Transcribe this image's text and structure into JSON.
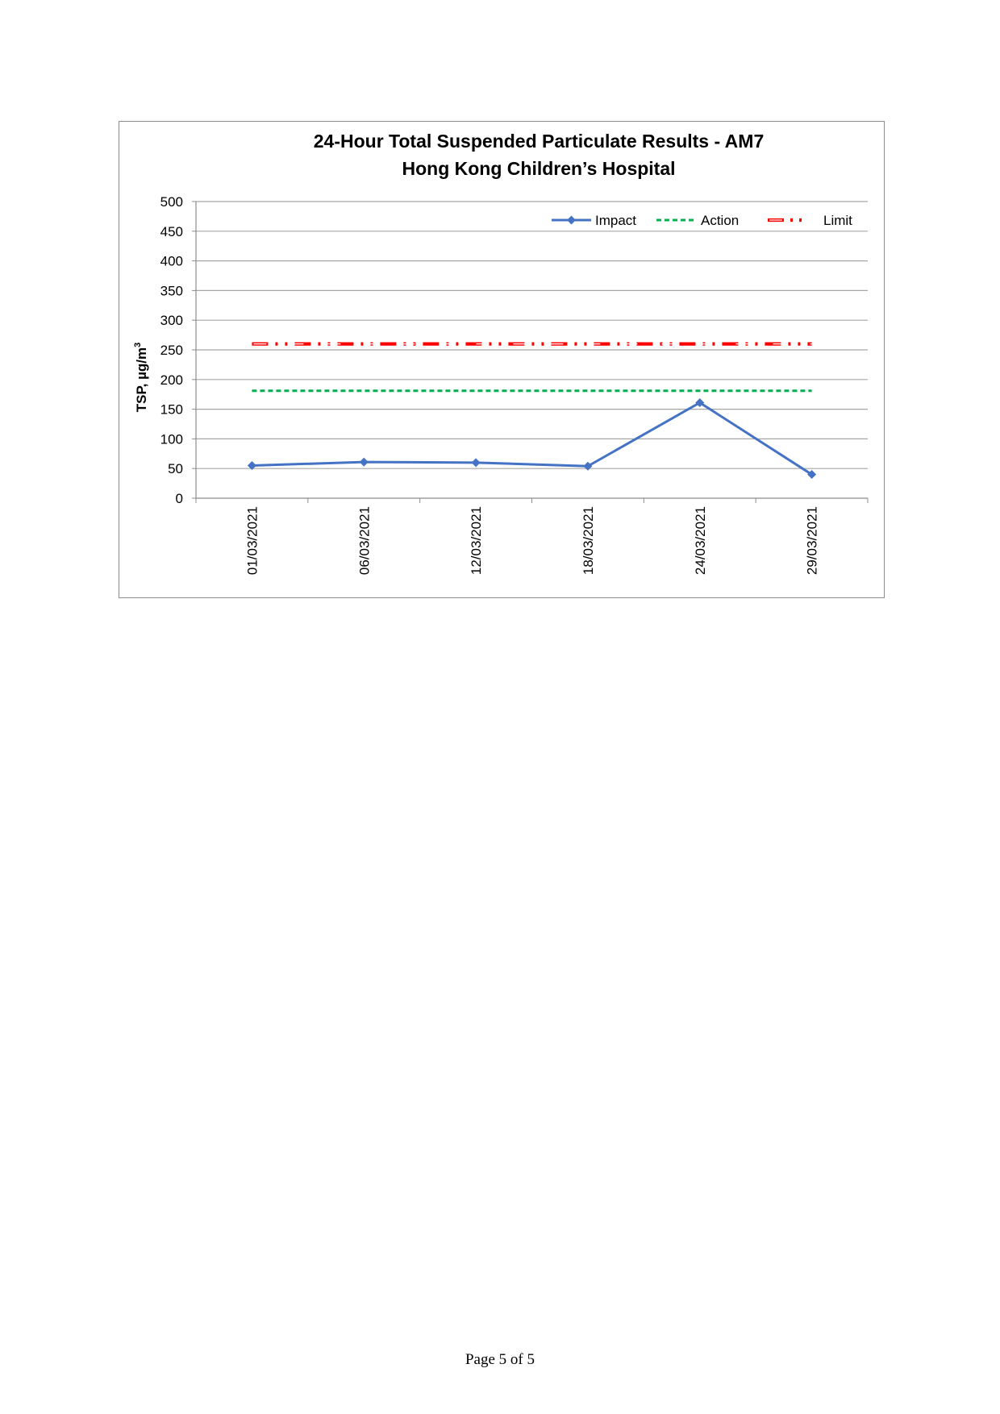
{
  "chart_data": {
    "type": "line",
    "title": "24-Hour Total Suspended Particulate Results - AM7",
    "subtitle": "Hong Kong Children’s Hospital",
    "ylabel": "TSP, µg/m",
    "ylabel_superscript": "3",
    "xlabel": "",
    "ylim": [
      0,
      500
    ],
    "yticks": [
      0,
      50,
      100,
      150,
      200,
      250,
      300,
      350,
      400,
      450,
      500
    ],
    "categories": [
      "01/03/2021",
      "06/03/2021",
      "12/03/2021",
      "18/03/2021",
      "24/03/2021",
      "29/03/2021"
    ],
    "grid": true,
    "legend_position": "top-right",
    "series": [
      {
        "name": "Impact",
        "values": [
          55,
          61,
          60,
          54,
          161,
          40
        ],
        "color": "#4472c4",
        "style": "solid-diamond"
      },
      {
        "name": "Action",
        "values": [
          181,
          181,
          181,
          181,
          181,
          181
        ],
        "color": "#00b050",
        "style": "dashed"
      },
      {
        "name": "Limit",
        "values": [
          260,
          260,
          260,
          260,
          260,
          260
        ],
        "color": "#ff0000",
        "style": "dash-dot-dot"
      }
    ]
  },
  "footer": {
    "page_label": "Page 5 of 5"
  }
}
